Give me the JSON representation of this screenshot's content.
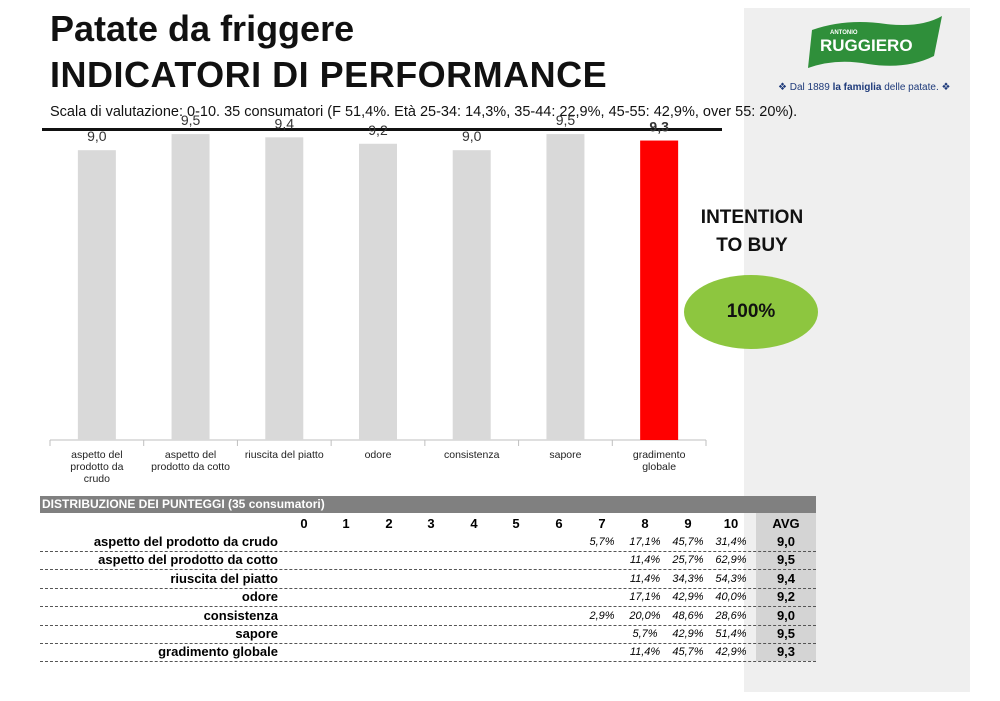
{
  "header": {
    "title_line1": "Patate da friggere",
    "title_line2": "INDICATORI DI PERFORMANCE",
    "subtitle": "Scala di valutazione: 0-10. 35 consumatori (F 51,4%. Età 25-34: 14,3%, 35-44: 22,9%, 45-55: 42,9%, over 55: 20%)."
  },
  "brand": {
    "logo_small": "ANTONIO",
    "logo_name": "RUGGIERO",
    "tagline_prefix": "Dal 1889 ",
    "tagline_bold": "la famiglia",
    "tagline_suffix": " delle patate.",
    "colors": {
      "green": "#2f8f3a",
      "blue": "#1e3a7a"
    }
  },
  "chart_data": {
    "type": "bar",
    "categories": [
      "aspetto del prodotto da crudo",
      "aspetto del prodotto da cotto",
      "riuscita del piatto",
      "odore",
      "consistenza",
      "sapore",
      "gradimento globale"
    ],
    "category_lines": [
      [
        "aspetto del",
        "prodotto da",
        "crudo"
      ],
      [
        "aspetto del",
        "prodotto da cotto"
      ],
      [
        "riuscita del piatto"
      ],
      [
        "odore"
      ],
      [
        "consistenza"
      ],
      [
        "sapore"
      ],
      [
        "gradimento",
        "globale"
      ]
    ],
    "values": [
      9.0,
      9.5,
      9.4,
      9.2,
      9.0,
      9.5,
      9.3
    ],
    "value_labels": [
      "9,0",
      "9,5",
      "9,4",
      "9,2",
      "9,0",
      "9,5",
      "9,3"
    ],
    "highlight_index": 6,
    "colors": {
      "bar": "#d9d9d9",
      "highlight": "#ff0000"
    },
    "ylim": [
      0,
      10
    ],
    "grid": false
  },
  "intention": {
    "label_line1": "INTENTION",
    "label_line2": "TO BUY",
    "value": "100%",
    "color": "#8dc63f"
  },
  "distribution": {
    "title": "DISTRIBUZIONE DEI PUNTEGGI (35 consumatori)",
    "score_headers": [
      "0",
      "1",
      "2",
      "3",
      "4",
      "5",
      "6",
      "7",
      "8",
      "9",
      "10"
    ],
    "avg_header": "AVG",
    "rows": [
      {
        "label": "aspetto del prodotto da crudo",
        "cells": {
          "7": "5,7%",
          "8": "17,1%",
          "9": "45,7%",
          "10": "31,4%"
        },
        "avg": "9,0"
      },
      {
        "label": "aspetto del prodotto da cotto",
        "cells": {
          "8": "11,4%",
          "9": "25,7%",
          "10": "62,9%"
        },
        "avg": "9,5"
      },
      {
        "label": "riuscita del piatto",
        "cells": {
          "8": "11,4%",
          "9": "34,3%",
          "10": "54,3%"
        },
        "avg": "9,4"
      },
      {
        "label": "odore",
        "cells": {
          "8": "17,1%",
          "9": "42,9%",
          "10": "40,0%"
        },
        "avg": "9,2"
      },
      {
        "label": "consistenza",
        "cells": {
          "7": "2,9%",
          "8": "20,0%",
          "9": "48,6%",
          "10": "28,6%"
        },
        "avg": "9,0"
      },
      {
        "label": "sapore",
        "cells": {
          "8": "5,7%",
          "9": "42,9%",
          "10": "51,4%"
        },
        "avg": "9,5"
      },
      {
        "label": "gradimento globale",
        "cells": {
          "8": "11,4%",
          "9": "45,7%",
          "10": "42,9%"
        },
        "avg": "9,3"
      }
    ]
  }
}
